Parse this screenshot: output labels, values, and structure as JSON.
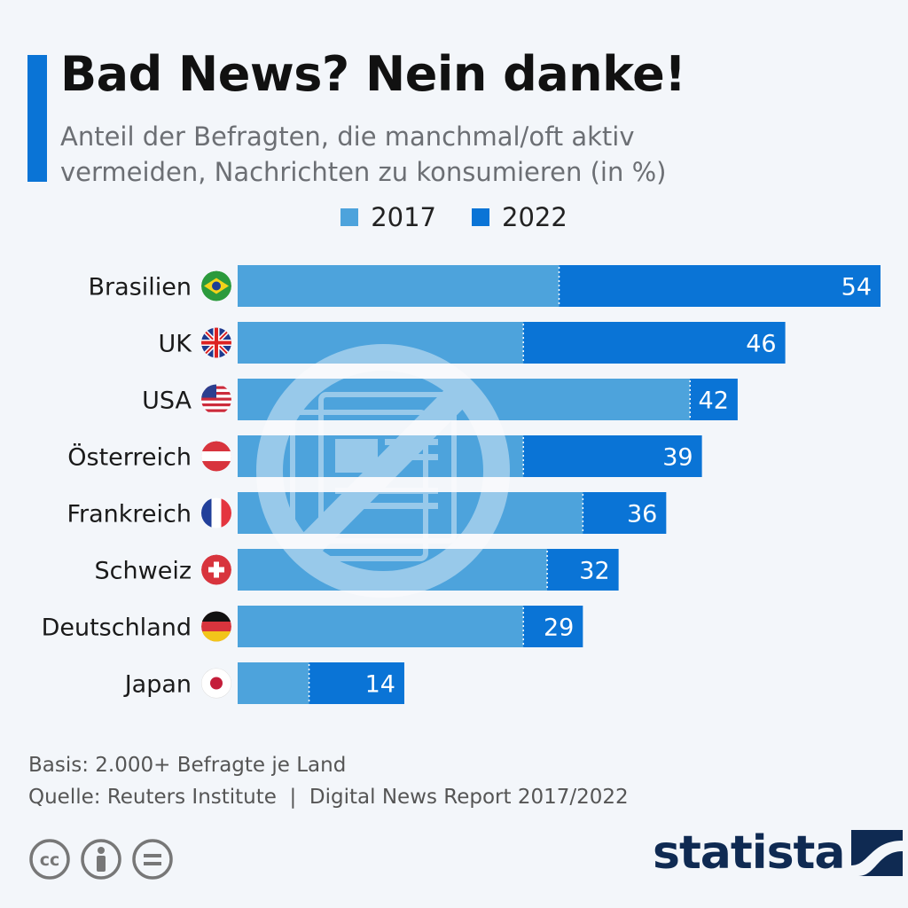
{
  "header": {
    "title": "Bad News? Nein danke!",
    "subtitle": "Anteil der Befragten, die manchmal/oft aktiv vermeiden, Nachrichten zu konsumieren (in %)"
  },
  "colors": {
    "accent": "#0a74d6",
    "series_2017": "#4da3dc",
    "series_2022": "#0a74d6"
  },
  "chart_data": {
    "type": "bar",
    "orientation": "horizontal",
    "title": "Bad News? Nein danke!",
    "subtitle": "Anteil der Befragten, die manchmal/oft aktiv vermeiden, Nachrichten zu konsumieren (in %)",
    "categories": [
      "Brasilien",
      "UK",
      "USA",
      "Österreich",
      "Frankreich",
      "Schweiz",
      "Deutschland",
      "Japan"
    ],
    "series": [
      {
        "name": "2017",
        "values": [
          27,
          24,
          38,
          24,
          29,
          26,
          24,
          6
        ]
      },
      {
        "name": "2022",
        "values": [
          54,
          46,
          42,
          39,
          36,
          32,
          29,
          14
        ]
      }
    ],
    "data_labels": [
      "54",
      "46",
      "42",
      "39",
      "36",
      "32",
      "29",
      "14"
    ],
    "xlim": [
      0,
      54
    ],
    "legend": "top-center",
    "grid": false
  },
  "footer": {
    "basis": "Basis: 2.000+ Befragte je Land",
    "source": "Quelle: Reuters Institute  |  Digital News Report 2017/2022"
  },
  "branding": {
    "logo": "statista",
    "license_icons": [
      "cc-icon",
      "by-icon",
      "nd-icon"
    ]
  }
}
